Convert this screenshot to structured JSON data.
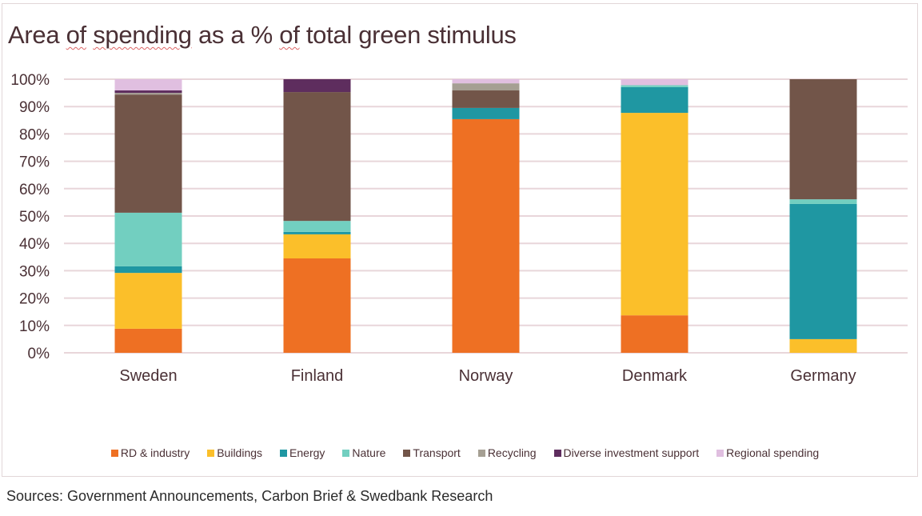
{
  "chart_data": {
    "type": "bar",
    "stacked": true,
    "title": "Area of spending as a % of total green stimulus",
    "xlabel": "",
    "ylabel": "",
    "ylim": [
      0,
      100
    ],
    "yticks": [
      "0%",
      "10%",
      "20%",
      "30%",
      "40%",
      "50%",
      "60%",
      "70%",
      "80%",
      "90%",
      "100%"
    ],
    "grid": true,
    "legend_position": "bottom",
    "categories": [
      "Sweden",
      "Finland",
      "Norway",
      "Denmark",
      "Germany"
    ],
    "series": [
      {
        "name": "RD & industry",
        "color": "#ee7023",
        "values": [
          8.8,
          34.5,
          85.4,
          13.7,
          0
        ]
      },
      {
        "name": "Buildings",
        "color": "#fbbf2a",
        "values": [
          20.4,
          8.8,
          0,
          74.0,
          5.0
        ]
      },
      {
        "name": "Energy",
        "color": "#1f97a2",
        "values": [
          2.4,
          0.9,
          4.1,
          9.4,
          49.4
        ]
      },
      {
        "name": "Nature",
        "color": "#72cfc0",
        "values": [
          19.6,
          4.0,
          0,
          0.7,
          1.7
        ]
      },
      {
        "name": "Transport",
        "color": "#725549",
        "values": [
          43.2,
          47.1,
          6.4,
          0,
          43.9
        ]
      },
      {
        "name": "Recycling",
        "color": "#a59f93",
        "values": [
          0.6,
          0,
          2.6,
          0,
          0
        ]
      },
      {
        "name": "Diverse investment support",
        "color": "#5e2d5e",
        "values": [
          0.9,
          4.7,
          0,
          0,
          0
        ]
      },
      {
        "name": "Regional spending",
        "color": "#e0bfe0",
        "values": [
          4.1,
          0,
          1.5,
          2.2,
          0
        ]
      }
    ]
  },
  "title_parts": [
    {
      "text": "Area ",
      "spell": false
    },
    {
      "text": "of",
      "spell": true
    },
    {
      "text": " ",
      "spell": false
    },
    {
      "text": "spending",
      "spell": true
    },
    {
      "text": " as a % ",
      "spell": false
    },
    {
      "text": "of",
      "spell": true
    },
    {
      "text": " total green stimulus",
      "spell": false
    }
  ],
  "source": "Sources: Government Announcements, Carbon Brief & Swedbank Research",
  "colors": {
    "gridline": "#e8d6da",
    "text": "#4a3035"
  }
}
